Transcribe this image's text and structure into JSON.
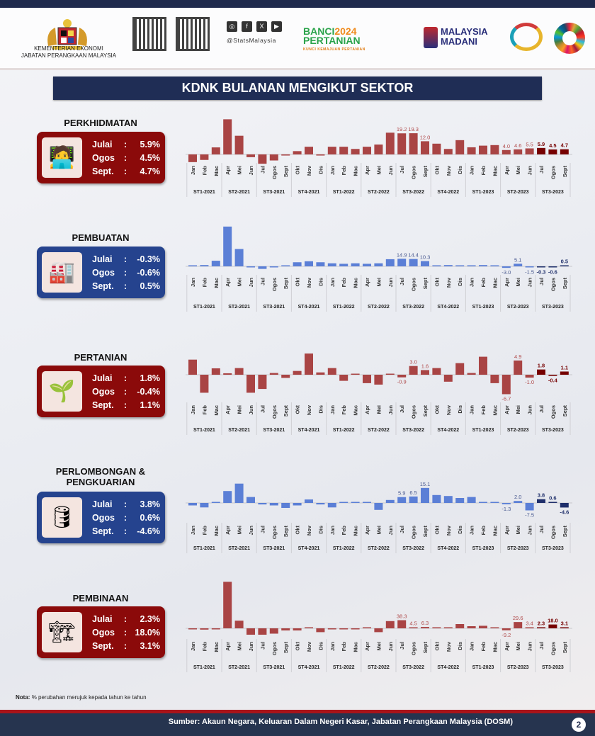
{
  "header": {
    "ministry_line1": "KEMENTERIAN EKONOMI",
    "ministry_line2": "JABATAN PERANGKAAN MALAYSIA",
    "social_handle": "@StatsMalaysia",
    "social_icons": [
      "instagram-icon",
      "facebook-icon",
      "x-icon",
      "youtube-icon"
    ],
    "banci_logo": {
      "line1a": "BANCI",
      "line1b": "2024",
      "line2": "PERTANIAN",
      "tagline": "KUNCI KEMAJUAN PERTANIAN"
    },
    "madani_logo": {
      "line1": "MALAYSIA",
      "line2": "MADANI"
    }
  },
  "title": "KDNK BULANAN MENGIKUT SEKTOR",
  "months": [
    "Jan",
    "Feb",
    "Mac",
    "Apr",
    "Mei",
    "Jun",
    "Jul",
    "Ogos",
    "Sept",
    "Okt",
    "Nov",
    "Dis",
    "Jan",
    "Feb",
    "Mac",
    "Apr",
    "Mei",
    "Jun",
    "Jul",
    "Ogos",
    "Sept",
    "Okt",
    "Nov",
    "Dis",
    "Jan",
    "Feb",
    "Mac",
    "Apr",
    "Mei",
    "Jun",
    "Jul",
    "Ogos",
    "Sept"
  ],
  "quarters": [
    "ST1-2021",
    "ST2-2021",
    "ST3-2021",
    "ST4-2021",
    "ST1-2022",
    "ST2-2022",
    "ST3-2022",
    "ST4-2022",
    "ST1-2023",
    "ST2-2023",
    "ST3-2023"
  ],
  "colors": {
    "red": "#a94444",
    "red_highlight": "#760000",
    "blue": "#5b7fd6",
    "blue_highlight": "#1f2f6b",
    "red_label": "#b04a4a",
    "blue_label": "#4a5a90"
  },
  "sectors": [
    {
      "name": "PERKHIDMATAN",
      "theme": "red",
      "icon": "customer-service-icon",
      "summary": [
        {
          "month": "Julai",
          "value": "5.9%"
        },
        {
          "month": "Ogos",
          "value": "4.5%"
        },
        {
          "month": "Sept.",
          "value": "4.7%"
        }
      ]
    },
    {
      "name": "PEMBUATAN",
      "theme": "blue",
      "icon": "factory-icon",
      "summary": [
        {
          "month": "Julai",
          "value": "-0.3%"
        },
        {
          "month": "Ogos",
          "value": "-0.6%"
        },
        {
          "month": "Sept.",
          "value": "0.5%"
        }
      ]
    },
    {
      "name": "PERTANIAN",
      "theme": "red",
      "icon": "agriculture-icon",
      "summary": [
        {
          "month": "Julai",
          "value": "1.8%"
        },
        {
          "month": "Ogos",
          "value": "-0.4%"
        },
        {
          "month": "Sept.",
          "value": "1.1%"
        }
      ]
    },
    {
      "name": "PERLOMBONGAN & PENGKUARIAN",
      "theme": "blue",
      "icon": "oil-rig-icon",
      "summary": [
        {
          "month": "Julai",
          "value": "3.8%"
        },
        {
          "month": "Ogos",
          "value": "0.6%"
        },
        {
          "month": "Sept.",
          "value": "-4.6%"
        }
      ]
    },
    {
      "name": "PEMBINAAN",
      "theme": "red",
      "icon": "crane-icon",
      "summary": [
        {
          "month": "Julai",
          "value": "2.3%"
        },
        {
          "month": "Ogos",
          "value": "18.0%"
        },
        {
          "month": "Sept.",
          "value": "3.1%"
        }
      ]
    }
  ],
  "chart_data": [
    {
      "type": "bar",
      "sector": "PERKHIDMATAN",
      "unit": "% yoy",
      "highlight_last": 3,
      "values": [
        -7,
        -5,
        6.4,
        32,
        17,
        -2.5,
        -8.5,
        -5.5,
        -1,
        3,
        7,
        -1,
        7,
        7,
        5,
        7,
        9,
        19.8,
        19.2,
        19.3,
        12.0,
        9.8,
        5,
        13,
        6.5,
        8,
        8.5,
        4.0,
        4.6,
        5.5,
        5.9,
        4.5,
        4.7
      ],
      "labels": {
        "18": "19.2",
        "19": "19.3",
        "20": "12.0",
        "27": "4.0",
        "28": "4.6",
        "29": "5.5",
        "30": "5.9",
        "31": "4.5",
        "32": "4.7"
      }
    },
    {
      "type": "bar",
      "sector": "PEMBUATAN",
      "unit": "% yoy",
      "highlight_last": 3,
      "values": [
        1.5,
        2.5,
        11,
        78,
        34,
        -1,
        -5,
        -0.3,
        1.5,
        8,
        10,
        8,
        6,
        5,
        6,
        5,
        6,
        14,
        14.9,
        14.4,
        10.3,
        1.5,
        2.5,
        1.5,
        0,
        2.5,
        1.5,
        -3.0,
        5.1,
        -1.5,
        -0.3,
        -0.6,
        0.5
      ],
      "labels": {
        "18": "14.9",
        "19": "14.4",
        "20": "10.3",
        "27": "-3.0",
        "28": "5.1",
        "29": "-1.5",
        "30": "-0.3",
        "31": "-0.6",
        "32": "0.5"
      }
    },
    {
      "type": "bar",
      "sector": "PERTANIAN",
      "unit": "% yoy",
      "highlight_last": 3,
      "values": [
        5.2,
        -6.2,
        2.2,
        0.5,
        2.3,
        -6.2,
        -4.9,
        0.6,
        -1.1,
        1.3,
        7.3,
        0.8,
        2.3,
        -2.1,
        0,
        -2.9,
        -3.4,
        0,
        -0.9,
        3.0,
        1.6,
        2.3,
        -2.4,
        4,
        0.6,
        6.2,
        -2.9,
        -6.7,
        4.9,
        -1.0,
        1.8,
        -0.4,
        1.1
      ],
      "labels": {
        "18": "-0.9",
        "19": "3.0",
        "20": "1.6",
        "27": "-6.7",
        "28": "4.9",
        "29": "-1.0",
        "30": "1.8",
        "31": "-0.4",
        "32": "1.1"
      }
    },
    {
      "type": "bar",
      "sector": "PERLOMBONGAN & PENGKUARIAN",
      "unit": "% yoy",
      "highlight_last": 3,
      "values": [
        -2.5,
        -4.5,
        0,
        12,
        19.5,
        6,
        -1.5,
        -2.5,
        -5,
        -2.5,
        3.5,
        -1.5,
        -4.5,
        0,
        0,
        0.5,
        -7,
        3,
        5.9,
        6.5,
        15.1,
        8,
        7,
        5,
        6,
        0.3,
        0.3,
        -1.3,
        2.0,
        -7.5,
        3.8,
        0.6,
        -4.6
      ],
      "labels": {
        "18": "5.9",
        "19": "6.5",
        "20": "15.1",
        "27": "-1.3",
        "28": "2.0",
        "29": "-7.5",
        "30": "3.8",
        "31": "0.6",
        "32": "-4.6"
      }
    },
    {
      "type": "bar",
      "sector": "PEMBINAAN",
      "unit": "% yoy",
      "highlight_last": 3,
      "values": [
        -5,
        -6,
        -2,
        219,
        36,
        -30,
        -30,
        -25,
        -10,
        -10,
        0,
        -18,
        -5,
        -4,
        -4,
        2,
        -18,
        34,
        38.3,
        4.5,
        6.3,
        0.5,
        1,
        20,
        10,
        12,
        1,
        -9.2,
        29.6,
        3.4,
        2.3,
        18.0,
        3.1
      ],
      "labels": {
        "18": "38.3",
        "19": "4.5",
        "20": "6.3",
        "27": "-9.2",
        "28": "29.6",
        "29": "3.4",
        "30": "2.3",
        "31": "18.0",
        "32": "3.1"
      }
    }
  ],
  "note_label": "Nota:",
  "note_text": "% perubahan  merujuk kepada  tahun ke tahun",
  "footer": {
    "source": "Sumber: Akaun Negara, Keluaran Dalam Negeri Kasar, Jabatan Perangkaan Malaysia (DOSM)",
    "page": "2"
  }
}
